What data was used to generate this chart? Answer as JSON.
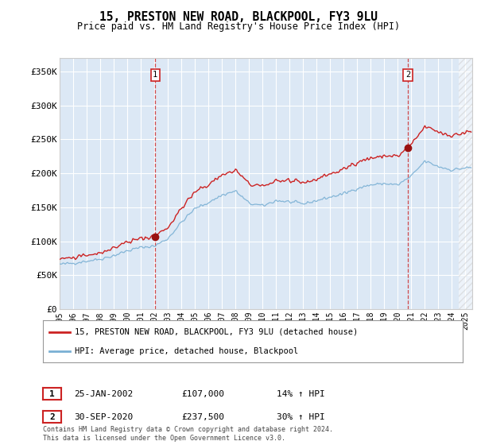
{
  "title": "15, PRESTON NEW ROAD, BLACKPOOL, FY3 9LU",
  "subtitle": "Price paid vs. HM Land Registry's House Price Index (HPI)",
  "ylabel_ticks": [
    "£0",
    "£50K",
    "£100K",
    "£150K",
    "£200K",
    "£250K",
    "£300K",
    "£350K"
  ],
  "ylim": [
    0,
    370000
  ],
  "xlim_start": 1995.0,
  "xlim_end": 2025.5,
  "legend_line1": "15, PRESTON NEW ROAD, BLACKPOOL, FY3 9LU (detached house)",
  "legend_line2": "HPI: Average price, detached house, Blackpool",
  "sale1_date": "25-JAN-2002",
  "sale1_price": "£107,000",
  "sale1_pct": "14% ↑ HPI",
  "sale2_date": "30-SEP-2020",
  "sale2_price": "£237,500",
  "sale2_pct": "30% ↑ HPI",
  "copyright": "Contains HM Land Registry data © Crown copyright and database right 2024.\nThis data is licensed under the Open Government Licence v3.0.",
  "bg_color": "#dce8f5",
  "grid_color": "#ffffff",
  "hpi_color": "#7ab0d4",
  "price_color": "#cc2222",
  "marker_color": "#991111",
  "sale1_x": 2002.07,
  "sale1_y": 107000,
  "sale2_x": 2020.75,
  "sale2_y": 237500
}
